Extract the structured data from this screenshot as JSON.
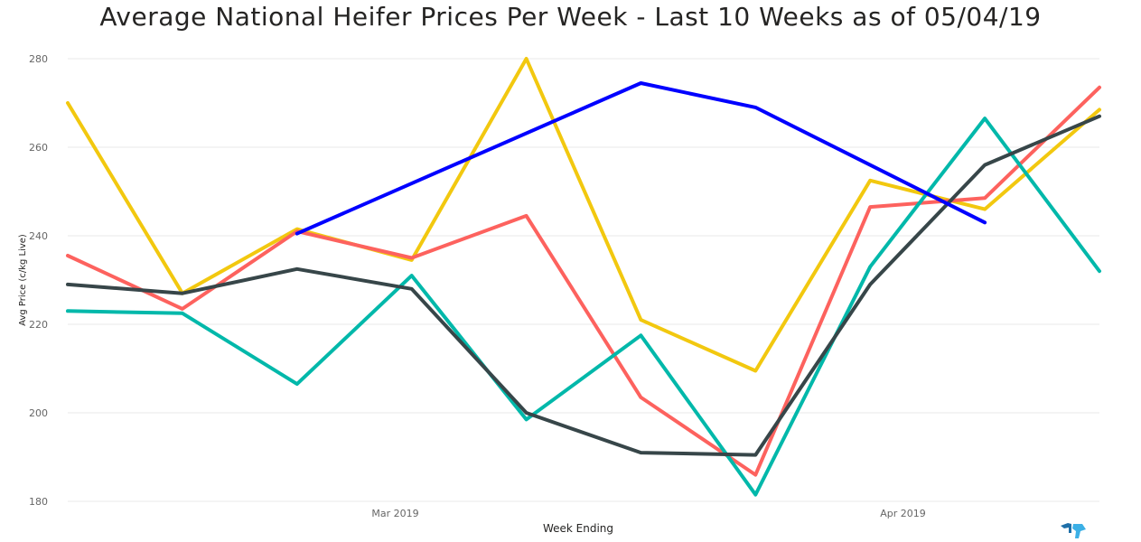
{
  "chart_data": {
    "type": "line",
    "title": "Average National Heifer Prices Per Week - Last 10 Weeks as of 05/04/19",
    "xlabel": "Week Ending",
    "ylabel": "Avg Price (c/kg Live)",
    "ylim": [
      180,
      280
    ],
    "yticks": [
      180,
      200,
      220,
      240,
      260,
      280
    ],
    "x": [
      "2019-02-09",
      "2019-02-16",
      "2019-02-23",
      "2019-03-02",
      "2019-03-09",
      "2019-03-16",
      "2019-03-23",
      "2019-03-30",
      "2019-04-06",
      "2019-04-13"
    ],
    "xticks": [
      {
        "label": "Mar 2019",
        "date": "2019-03-01"
      },
      {
        "label": "Apr 2019",
        "date": "2019-04-01"
      }
    ],
    "grid": true,
    "legend": "none",
    "series": [
      {
        "color": "#F2C80F",
        "values": [
          270,
          227,
          241.5,
          234.5,
          280,
          221,
          209.5,
          252.5,
          246,
          268.5
        ]
      },
      {
        "color": "#FD625E",
        "values": [
          235.5,
          223.5,
          241,
          235,
          244.5,
          203.5,
          186,
          246.5,
          248.5,
          273.5
        ]
      },
      {
        "color": "#01B8AA",
        "values": [
          223,
          222.5,
          206.5,
          231,
          198.5,
          217.5,
          181.5,
          233,
          266.5,
          232
        ]
      },
      {
        "color": "#374649",
        "values": [
          229,
          227,
          232.5,
          228,
          200,
          191,
          190.5,
          229,
          256,
          267
        ]
      },
      {
        "color": "#0000FF",
        "values": [
          null,
          null,
          240.5,
          null,
          null,
          274.5,
          269,
          null,
          243,
          null
        ]
      }
    ]
  }
}
